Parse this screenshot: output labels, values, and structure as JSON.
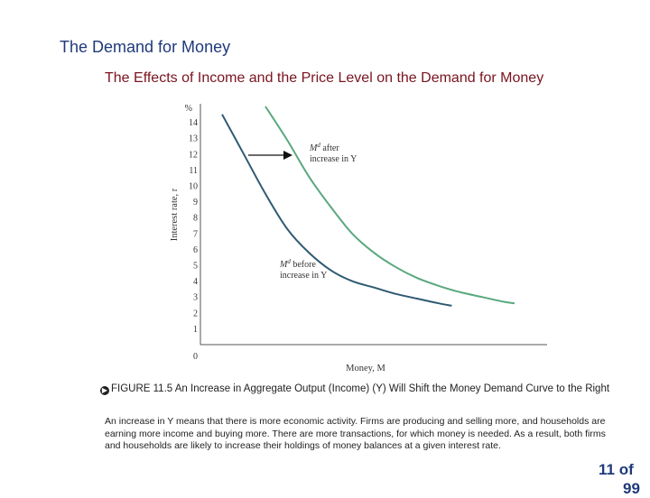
{
  "slide": {
    "title": "The Demand for Money",
    "subtitle": "The Effects of Income and the Price Level on the Demand for Money"
  },
  "chart_data": {
    "type": "line",
    "title": "",
    "xlabel": "Money, M",
    "ylabel": "Interest rate, r",
    "y_unit_label": "%",
    "y_ticks": [
      "14",
      "13",
      "12",
      "11",
      "10",
      "9",
      "8",
      "7",
      "6",
      "5",
      "4",
      "3",
      "2",
      "1",
      "0"
    ],
    "ylim": [
      0,
      15
    ],
    "grid": false,
    "series": [
      {
        "name_parts": [
          "M",
          "d",
          " before"
        ],
        "label_line2": "increase in Y",
        "color": "#2f5a73",
        "points": [
          [
            1.0,
            14.5
          ],
          [
            2.0,
            12.0
          ],
          [
            3.0,
            9.5
          ],
          [
            4.0,
            7.3
          ],
          [
            5.0,
            5.8
          ],
          [
            6.0,
            4.7
          ],
          [
            7.0,
            4.0
          ],
          [
            8.0,
            3.6
          ],
          [
            9.0,
            3.2
          ],
          [
            10.0,
            2.9
          ],
          [
            11.0,
            2.6
          ],
          [
            11.6,
            2.45
          ]
        ]
      },
      {
        "name_parts": [
          "M",
          "d",
          " after"
        ],
        "label_line2": "increase in Y",
        "color": "#5aa87e",
        "points": [
          [
            3.0,
            15.0
          ],
          [
            4.0,
            12.9
          ],
          [
            5.0,
            10.6
          ],
          [
            6.0,
            8.7
          ],
          [
            7.0,
            7.0
          ],
          [
            8.0,
            5.8
          ],
          [
            9.0,
            4.9
          ],
          [
            10.0,
            4.2
          ],
          [
            11.0,
            3.7
          ],
          [
            12.0,
            3.3
          ],
          [
            13.0,
            3.0
          ],
          [
            14.0,
            2.7
          ],
          [
            14.5,
            2.6
          ]
        ]
      }
    ],
    "annotation_arrow": "rightward shift"
  },
  "caption": {
    "figure_label": "FIGURE 11.5",
    "figure_text": "An Increase in Aggregate Output (Income) (Y) Will Shift the Money Demand Curve to the Right"
  },
  "body_text": "An increase in Y means that there is more economic activity. Firms are producing and selling more, and households are earning more income and buying more. There are more transactions, for which money is needed. As a result, both firms and households are likely to increase their holdings of money balances at a given interest rate.",
  "page": {
    "number_text": "11 of",
    "number_cut_text": "99"
  }
}
